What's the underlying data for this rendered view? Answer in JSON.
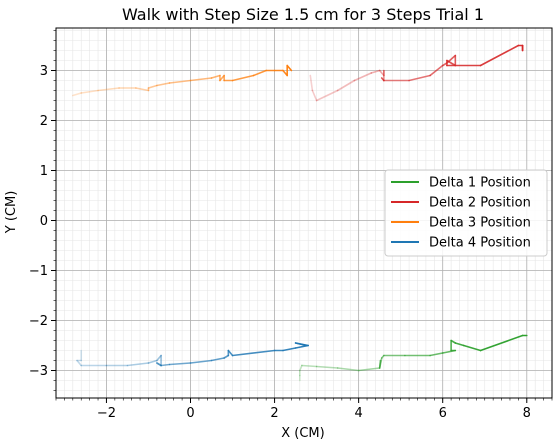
{
  "chart_data": {
    "type": "line",
    "title": "Walk with Step Size 1.5 cm for 3 Steps Trial 1",
    "xlabel": "X (CM)",
    "ylabel": "Y (CM)",
    "xlim": [
      -3.2,
      8.6
    ],
    "ylim": [
      -3.55,
      3.85
    ],
    "xticks": [
      -2,
      0,
      2,
      4,
      6,
      8
    ],
    "xtick_labels": [
      "−2",
      "0",
      "2",
      "4",
      "6",
      "8"
    ],
    "yticks": [
      -3,
      -2,
      -1,
      0,
      1,
      2,
      3
    ],
    "ytick_labels": [
      "−3",
      "−2",
      "−1",
      "0",
      "1",
      "2",
      "3"
    ],
    "minor_step": 0.2,
    "grid": true,
    "legend_position": "center-right",
    "series": [
      {
        "name": "Delta 1 Position",
        "color": "#2ca02c",
        "x": [
          2.6,
          2.6,
          2.6,
          2.65,
          3.0,
          3.5,
          4.0,
          4.5,
          4.52,
          4.5,
          4.55,
          4.6,
          5.1,
          5.7,
          6.0,
          6.3,
          6.2,
          6.2,
          6.3,
          6.5,
          6.9,
          7.9,
          8.0
        ],
        "y": [
          -3.2,
          -3.1,
          -3.0,
          -2.9,
          -2.92,
          -2.95,
          -3.0,
          -2.95,
          -2.8,
          -2.95,
          -2.75,
          -2.7,
          -2.7,
          -2.7,
          -2.65,
          -2.6,
          -2.6,
          -2.4,
          -2.45,
          -2.5,
          -2.6,
          -2.3,
          -2.3
        ]
      },
      {
        "name": "Delta 2 Position",
        "color": "#d62728",
        "x": [
          2.85,
          2.9,
          3.0,
          3.5,
          3.9,
          4.3,
          4.5,
          4.6,
          4.6,
          4.6,
          4.55,
          4.6,
          4.6,
          5.2,
          5.7,
          6.0,
          6.1,
          6.3,
          6.3,
          6.1,
          6.1,
          6.9,
          7.8,
          7.9,
          7.9,
          7.9
        ],
        "y": [
          2.9,
          2.6,
          2.4,
          2.6,
          2.8,
          2.95,
          3.0,
          2.9,
          3.0,
          2.8,
          2.85,
          2.8,
          2.8,
          2.8,
          2.9,
          3.1,
          3.15,
          3.3,
          3.1,
          3.2,
          3.1,
          3.1,
          3.5,
          3.5,
          3.4,
          3.5
        ]
      },
      {
        "name": "Delta 3 Position",
        "color": "#ff7f0e",
        "x": [
          -2.8,
          -2.6,
          -2.2,
          -1.7,
          -1.3,
          -1.0,
          -1.0,
          -0.8,
          -0.5,
          0.0,
          0.5,
          0.7,
          0.7,
          0.8,
          0.8,
          1.0,
          1.5,
          1.8,
          2.0,
          2.2,
          2.3,
          2.3,
          2.4
        ],
        "y": [
          2.5,
          2.55,
          2.6,
          2.65,
          2.65,
          2.6,
          2.65,
          2.7,
          2.75,
          2.8,
          2.85,
          2.9,
          2.8,
          2.9,
          2.8,
          2.8,
          2.9,
          3.0,
          3.0,
          3.0,
          2.9,
          3.1,
          3.0
        ]
      },
      {
        "name": "Delta 4 Position",
        "color": "#1f77b4",
        "x": [
          -2.6,
          -2.6,
          -2.7,
          -2.6,
          -2.0,
          -1.5,
          -1.0,
          -0.8,
          -0.7,
          -0.7,
          -0.8,
          -0.7,
          -0.7,
          -0.5,
          0.0,
          0.5,
          0.8,
          0.9,
          0.9,
          1.0,
          2.0,
          2.2,
          2.5,
          2.8,
          2.5,
          2.75
        ],
        "y": [
          -2.6,
          -2.8,
          -2.8,
          -2.9,
          -2.9,
          -2.9,
          -2.85,
          -2.8,
          -2.7,
          -2.9,
          -2.85,
          -2.9,
          -2.9,
          -2.88,
          -2.85,
          -2.8,
          -2.75,
          -2.7,
          -2.6,
          -2.7,
          -2.6,
          -2.6,
          -2.55,
          -2.5,
          -2.45,
          -2.5
        ]
      }
    ]
  }
}
